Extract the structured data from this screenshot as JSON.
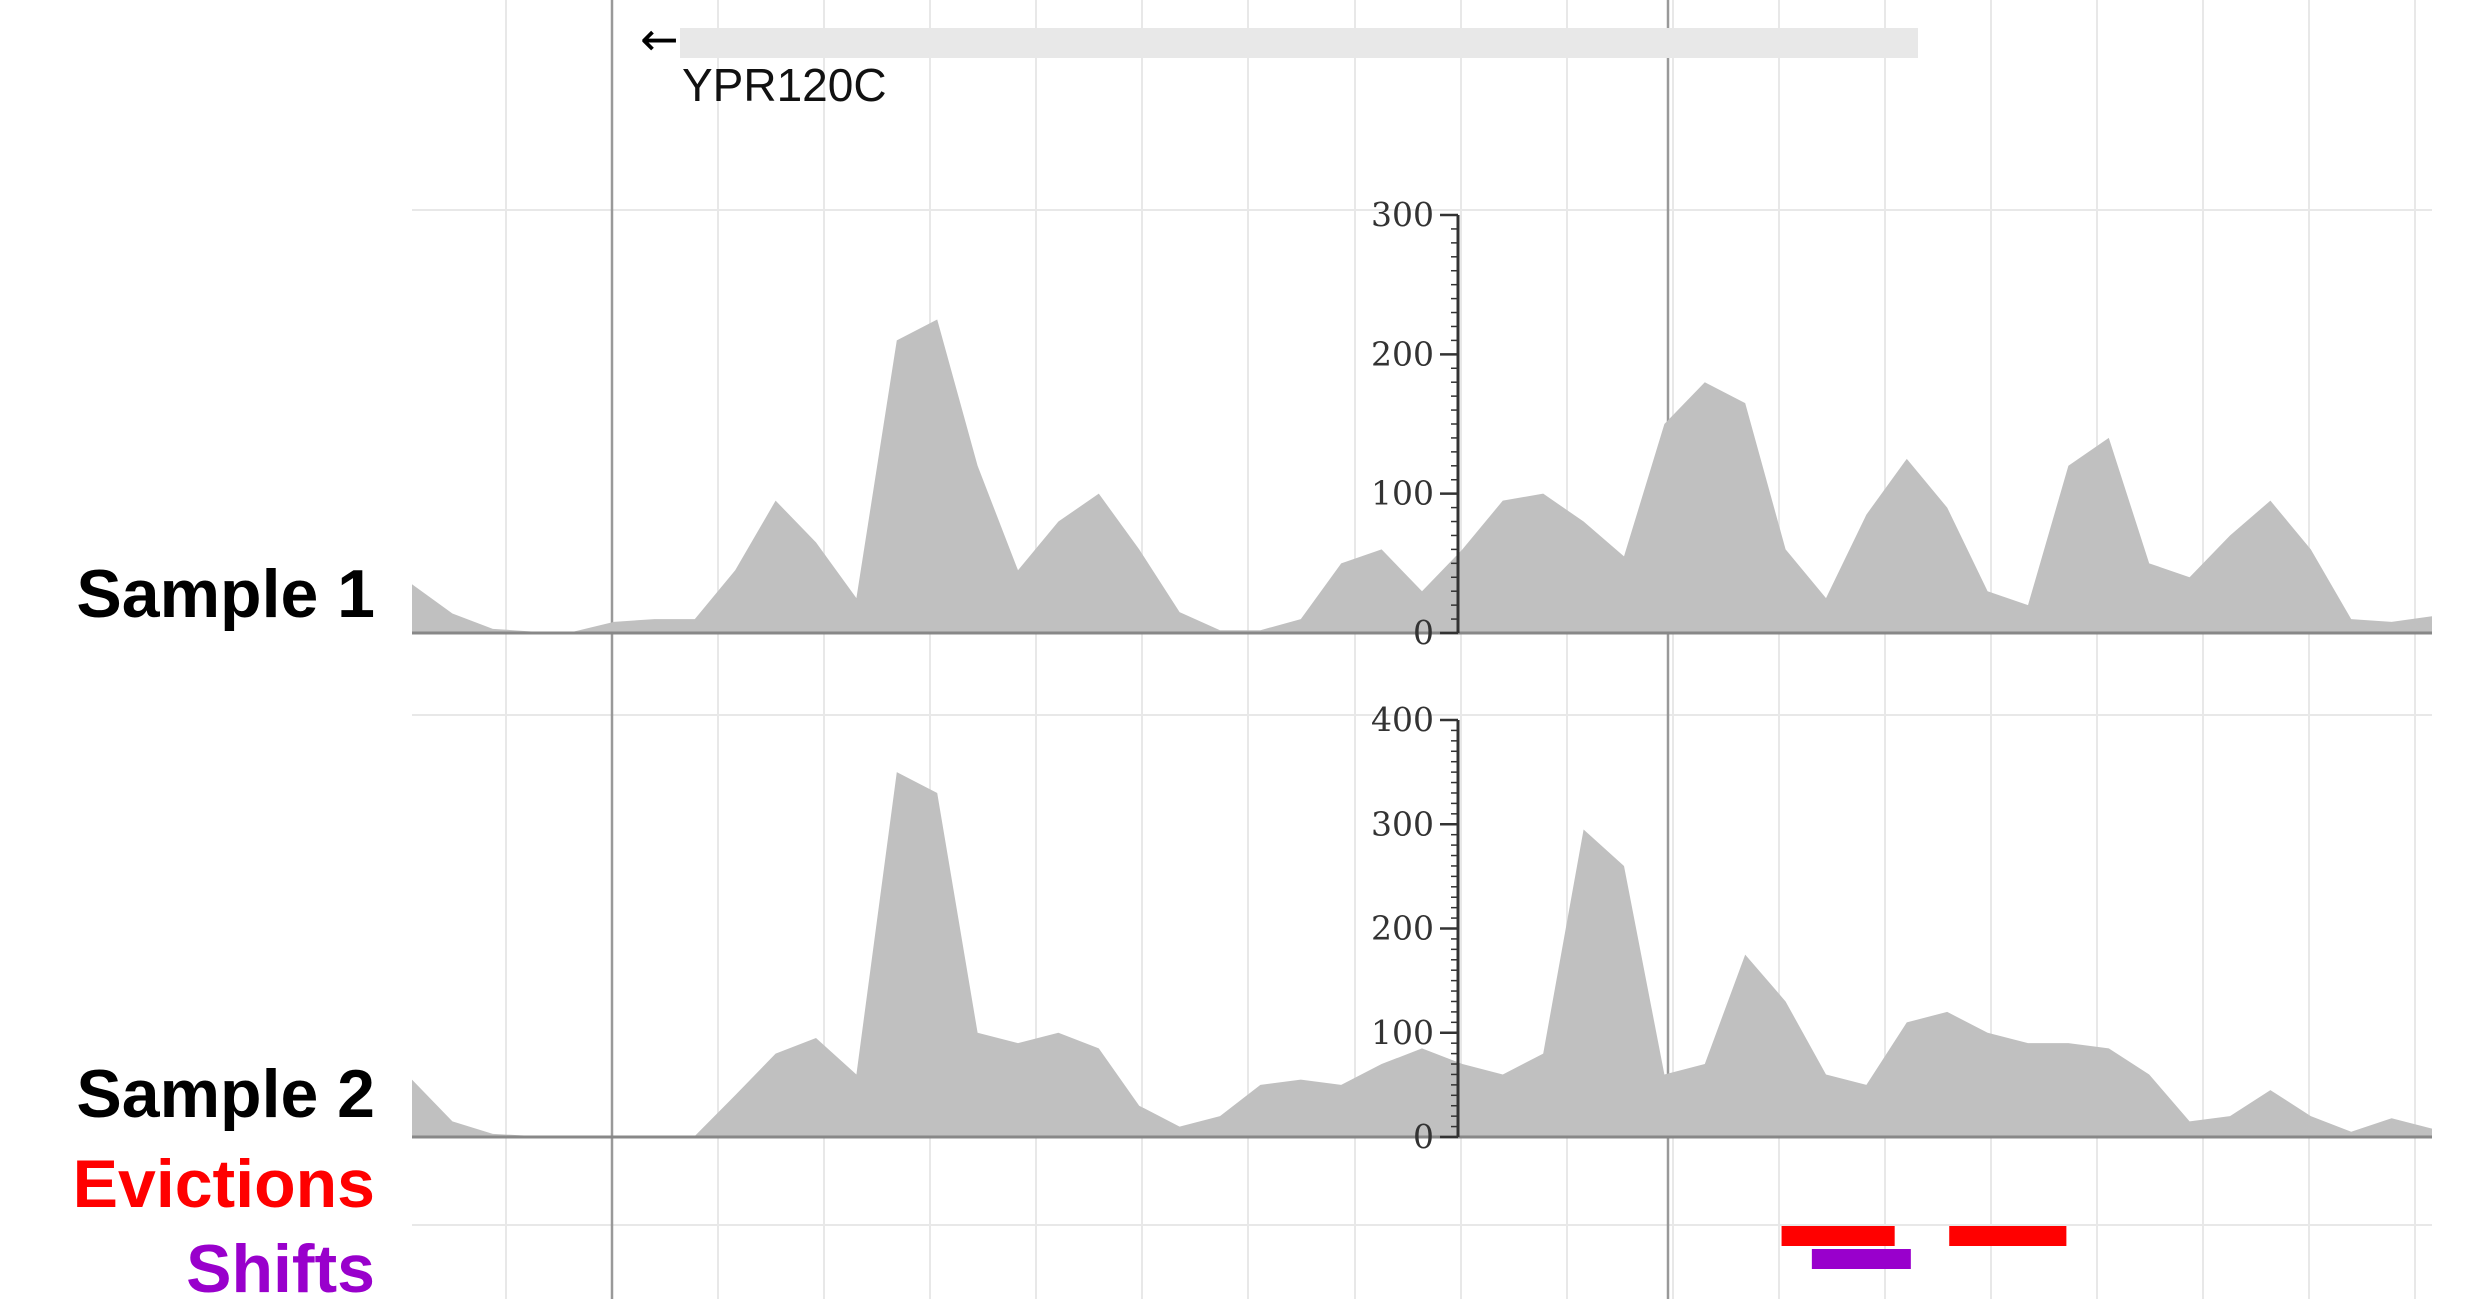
{
  "gene_track": {
    "gene_name": "YPR120C",
    "strand_arrow": "←",
    "bar_color": "#e8e8e8"
  },
  "labels": {
    "sample1": "Sample 1",
    "sample2": "Sample 2",
    "evictions": "Evictions",
    "shifts": "Shifts"
  },
  "colors": {
    "coverage_fill": "#c0c0c0",
    "grid": "#e8e8e8",
    "axis": "#333333",
    "evictions": "#ff0000",
    "shifts": "#9900cc",
    "label_text": "#000000"
  },
  "chart_data": [
    {
      "type": "area",
      "name": "Sample 1",
      "yticks": [
        0,
        100,
        200,
        300
      ],
      "ylim": [
        0,
        300
      ],
      "x": [
        0,
        2,
        4,
        6,
        8,
        10,
        12,
        14,
        16,
        18,
        20,
        22,
        24,
        26,
        28,
        30,
        32,
        34,
        36,
        38,
        40,
        42,
        44,
        46,
        48,
        50,
        52,
        54,
        56,
        58,
        60,
        62,
        64,
        66,
        68,
        70,
        72,
        74,
        76,
        78,
        80,
        82,
        84,
        86,
        88,
        90,
        92,
        94,
        96,
        98,
        100
      ],
      "values": [
        35,
        14,
        3,
        1,
        1,
        8,
        10,
        10,
        45,
        95,
        65,
        25,
        210,
        225,
        120,
        45,
        80,
        100,
        60,
        15,
        2,
        2,
        10,
        50,
        60,
        30,
        60,
        95,
        100,
        80,
        55,
        150,
        180,
        165,
        60,
        25,
        85,
        125,
        90,
        30,
        20,
        120,
        140,
        50,
        40,
        70,
        95,
        60,
        10,
        8,
        12
      ]
    },
    {
      "type": "area",
      "name": "Sample 2",
      "yticks": [
        0,
        100,
        200,
        300,
        400
      ],
      "ylim": [
        0,
        400
      ],
      "x": [
        0,
        2,
        4,
        6,
        8,
        10,
        12,
        14,
        16,
        18,
        20,
        22,
        24,
        26,
        28,
        30,
        32,
        34,
        36,
        38,
        40,
        42,
        44,
        46,
        48,
        50,
        52,
        54,
        56,
        58,
        60,
        62,
        64,
        66,
        68,
        70,
        72,
        74,
        76,
        78,
        80,
        82,
        84,
        86,
        88,
        90,
        92,
        94,
        96,
        98,
        100
      ],
      "values": [
        55,
        15,
        3,
        1,
        1,
        1,
        1,
        1,
        40,
        80,
        95,
        60,
        350,
        330,
        100,
        90,
        100,
        85,
        30,
        10,
        20,
        50,
        55,
        50,
        70,
        85,
        70,
        60,
        80,
        295,
        260,
        60,
        70,
        175,
        130,
        60,
        50,
        110,
        120,
        100,
        90,
        90,
        85,
        60,
        15,
        20,
        45,
        20,
        5,
        18,
        8
      ]
    },
    {
      "type": "bar",
      "name": "Evictions",
      "segments": [
        [
          67.8,
          73.4
        ],
        [
          76.1,
          81.9
        ]
      ]
    },
    {
      "type": "bar",
      "name": "Shifts",
      "segments": [
        [
          69.3,
          74.2
        ]
      ]
    }
  ]
}
